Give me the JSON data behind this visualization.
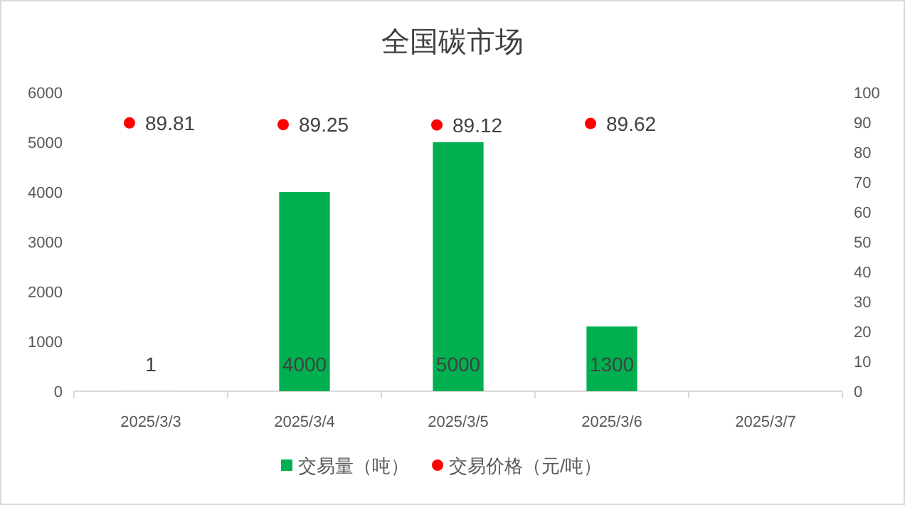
{
  "chart_data": {
    "type": "bar",
    "title": "全国碳市场",
    "categories": [
      "2025/3/3",
      "2025/3/4",
      "2025/3/5",
      "2025/3/6",
      "2025/3/7"
    ],
    "series": [
      {
        "name": "交易量（吨）",
        "color": "#00b050",
        "values": [
          1,
          4000,
          5000,
          1300,
          null
        ]
      },
      {
        "name": "交易价格（元/吨）",
        "type": "scatter",
        "axis": "y2",
        "marker": "circle",
        "color": "#ff0000",
        "values": [
          89.81,
          89.25,
          89.12,
          89.62,
          null
        ]
      }
    ],
    "ylim": [
      0,
      6000
    ],
    "yticks": [
      0,
      1000,
      2000,
      3000,
      4000,
      5000,
      6000
    ],
    "y2lim": [
      0,
      100
    ],
    "y2ticks": [
      0,
      10,
      20,
      30,
      40,
      50,
      60,
      70,
      80,
      90,
      100
    ],
    "data_labels": true,
    "legend": "bottom",
    "grid": false
  }
}
